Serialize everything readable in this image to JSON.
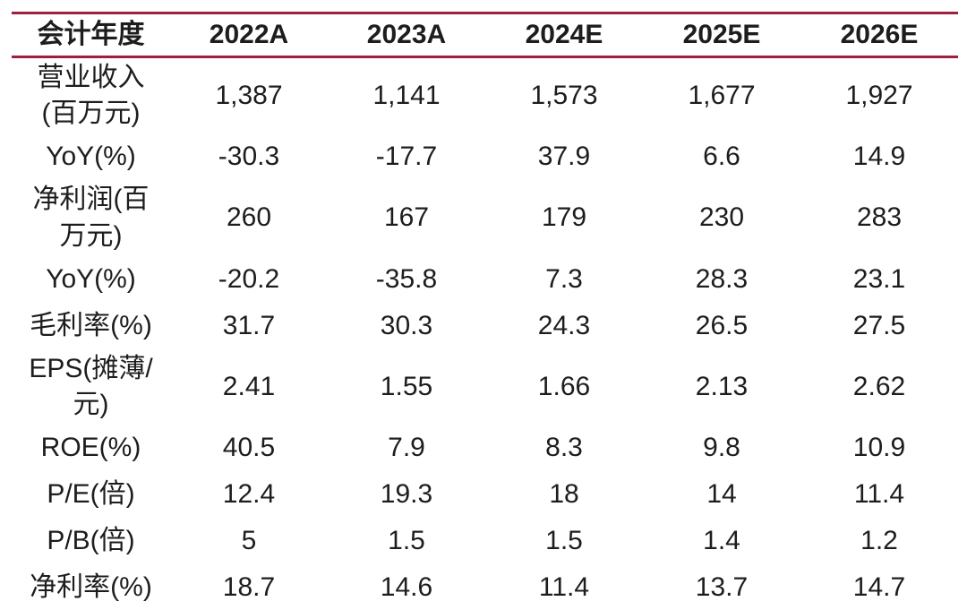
{
  "colors": {
    "rule": "#A01E42",
    "text": "#1D1D1D",
    "background": "#FFFFFF"
  },
  "table": {
    "header": [
      "会计年度",
      "2022A",
      "2023A",
      "2024E",
      "2025E",
      "2026E"
    ],
    "rows": [
      {
        "label": "营业收入\n(百万元)",
        "values": [
          "1,387",
          "1,141",
          "1,573",
          "1,677",
          "1,927"
        ]
      },
      {
        "label": "YoY(%)",
        "values": [
          "-30.3",
          "-17.7",
          "37.9",
          "6.6",
          "14.9"
        ]
      },
      {
        "label": "净利润(百\n万元)",
        "values": [
          "260",
          "167",
          "179",
          "230",
          "283"
        ]
      },
      {
        "label": "YoY(%)",
        "values": [
          "-20.2",
          "-35.8",
          "7.3",
          "28.3",
          "23.1"
        ]
      },
      {
        "label": "毛利率(%)",
        "values": [
          "31.7",
          "30.3",
          "24.3",
          "26.5",
          "27.5"
        ]
      },
      {
        "label": "EPS(摊薄/\n元)",
        "values": [
          "2.41",
          "1.55",
          "1.66",
          "2.13",
          "2.62"
        ]
      },
      {
        "label": "ROE(%)",
        "values": [
          "40.5",
          "7.9",
          "8.3",
          "9.8",
          "10.9"
        ]
      },
      {
        "label": "P/E(倍)",
        "values": [
          "12.4",
          "19.3",
          "18",
          "14",
          "11.4"
        ]
      },
      {
        "label": "P/B(倍)",
        "values": [
          "5",
          "1.5",
          "1.5",
          "1.4",
          "1.2"
        ]
      },
      {
        "label": "净利率(%)",
        "values": [
          "18.7",
          "14.6",
          "11.4",
          "13.7",
          "14.7"
        ]
      }
    ]
  },
  "chart_data": {
    "type": "table",
    "columns": [
      "会计年度",
      "2022A",
      "2023A",
      "2024E",
      "2025E",
      "2026E"
    ],
    "rows": [
      {
        "metric": "营业收入(百万元)",
        "values": [
          1387,
          1141,
          1573,
          1677,
          1927
        ]
      },
      {
        "metric": "YoY(%)",
        "values": [
          -30.3,
          -17.7,
          37.9,
          6.6,
          14.9
        ]
      },
      {
        "metric": "净利润(百万元)",
        "values": [
          260,
          167,
          179,
          230,
          283
        ]
      },
      {
        "metric": "YoY(%)",
        "values": [
          -20.2,
          -35.8,
          7.3,
          28.3,
          23.1
        ]
      },
      {
        "metric": "毛利率(%)",
        "values": [
          31.7,
          30.3,
          24.3,
          26.5,
          27.5
        ]
      },
      {
        "metric": "EPS(摊薄/元)",
        "values": [
          2.41,
          1.55,
          1.66,
          2.13,
          2.62
        ]
      },
      {
        "metric": "ROE(%)",
        "values": [
          40.5,
          7.9,
          8.3,
          9.8,
          10.9
        ]
      },
      {
        "metric": "P/E(倍)",
        "values": [
          12.4,
          19.3,
          18,
          14,
          11.4
        ]
      },
      {
        "metric": "P/B(倍)",
        "values": [
          5,
          1.5,
          1.5,
          1.4,
          1.2
        ]
      },
      {
        "metric": "净利率(%)",
        "values": [
          18.7,
          14.6,
          11.4,
          13.7,
          14.7
        ]
      }
    ],
    "layout": {
      "header_bold": true,
      "rules": "top, below-header, bottom",
      "rule_color": "#A01E42",
      "value_alignment": "center"
    }
  }
}
